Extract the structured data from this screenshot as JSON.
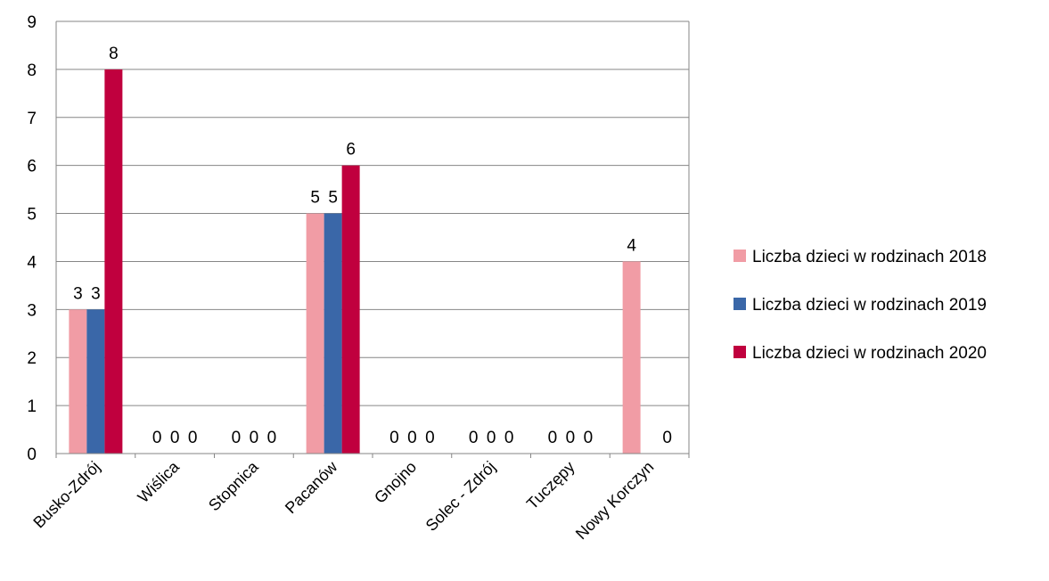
{
  "chart_data": {
    "type": "bar",
    "title": "",
    "xlabel": "",
    "ylabel": "",
    "ylim": [
      0,
      9
    ],
    "yticks": [
      0,
      1,
      2,
      3,
      4,
      5,
      6,
      7,
      8,
      9
    ],
    "grid": true,
    "legend_position": "right",
    "categories": [
      "Busko-Zdrój",
      "Wiślica",
      "Stopnica",
      "Pacanów",
      "Gnojno",
      "Solec - Zdrój",
      "Tuczępy",
      "Nowy Korczyn"
    ],
    "series": [
      {
        "name": "Liczba dzieci w rodzinach 2018",
        "color": "#f19ca5",
        "values": [
          3,
          0,
          0,
          5,
          0,
          0,
          0,
          4
        ]
      },
      {
        "name": "Liczba dzieci w rodzinach 2019",
        "color": "#3a67a8",
        "values": [
          3,
          0,
          0,
          5,
          0,
          0,
          0,
          null
        ]
      },
      {
        "name": "Liczba dzieci w rodzinach 2020",
        "color": "#c0003e",
        "values": [
          8,
          0,
          0,
          6,
          0,
          0,
          0,
          0
        ]
      }
    ]
  }
}
